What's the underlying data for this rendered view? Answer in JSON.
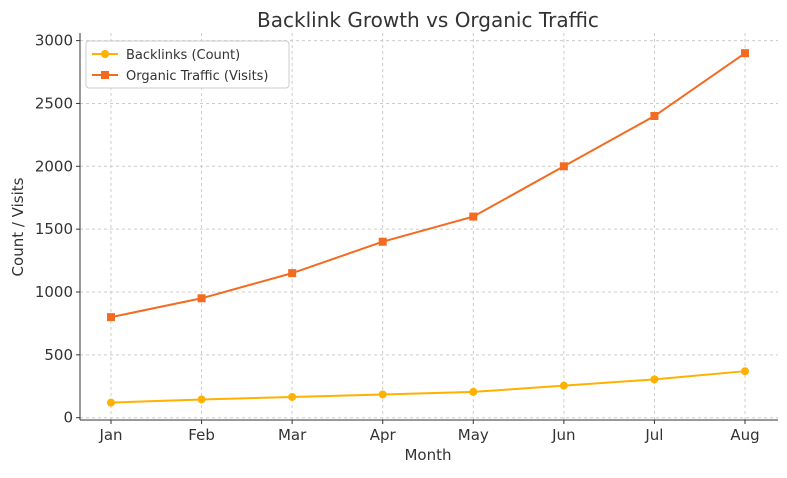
{
  "chart_data": {
    "type": "line",
    "title": "Backlink Growth vs Organic Traffic",
    "xlabel": "Month",
    "ylabel": "Count / Visits",
    "categories": [
      "Jan",
      "Feb",
      "Mar",
      "Apr",
      "May",
      "Jun",
      "Jul",
      "Aug"
    ],
    "ylim": [
      0,
      3000
    ],
    "yticks": [
      0,
      500,
      1000,
      1500,
      2000,
      2500,
      3000
    ],
    "grid": true,
    "legend": "top-left",
    "series": [
      {
        "name": "Backlinks (Count)",
        "values": [
          120,
          145,
          165,
          185,
          205,
          255,
          305,
          370
        ],
        "color": "#FFB000",
        "marker": "circle"
      },
      {
        "name": "Organic Traffic (Visits)",
        "values": [
          800,
          950,
          1150,
          1400,
          1600,
          2000,
          2400,
          2900
        ],
        "color": "#F26B21",
        "marker": "square"
      }
    ]
  }
}
